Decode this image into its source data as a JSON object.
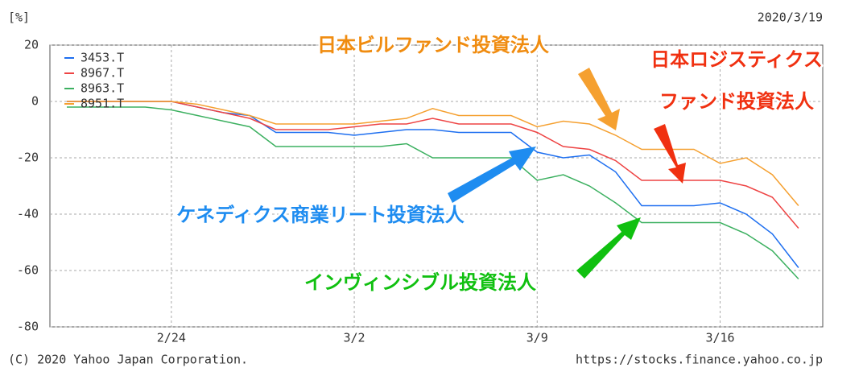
{
  "chart_data": {
    "type": "line",
    "y_unit": "[%]",
    "date": "2020/3/19",
    "categories": [
      null,
      null,
      null,
      null,
      "2/24",
      null,
      null,
      null,
      null,
      null,
      null,
      "3/2",
      null,
      null,
      null,
      null,
      null,
      null,
      "3/9",
      null,
      null,
      null,
      null,
      null,
      null,
      "3/16",
      null,
      null,
      null
    ],
    "series": [
      {
        "name": "3453.T",
        "color": "#1e6ff0",
        "values": [
          0,
          0,
          0,
          0,
          0,
          -2,
          -4,
          -5,
          -11,
          -11,
          -11,
          -12,
          -11,
          -10,
          -10,
          -11,
          -11,
          -11,
          -18,
          -20,
          -19,
          -25,
          -37,
          -37,
          -37,
          -36,
          -40,
          -47,
          -59
        ]
      },
      {
        "name": "8967.T",
        "color": "#ee4444",
        "values": [
          0,
          0,
          0,
          0,
          0,
          -2,
          -4,
          -6,
          -10,
          -10,
          -10,
          -9,
          -8,
          -8,
          -6,
          -8,
          -8,
          -8,
          -11,
          -16,
          -17,
          -21,
          -28,
          -28,
          -28,
          -28,
          -30,
          -34,
          -45
        ]
      },
      {
        "name": "8963.T",
        "color": "#3cb060",
        "values": [
          -2,
          -2,
          -2,
          -2,
          -3,
          -5,
          -7,
          -9,
          -16,
          -16,
          -16,
          -16,
          -16,
          -15,
          -20,
          -20,
          -20,
          -20,
          -28,
          -26,
          -30,
          -36,
          -43,
          -43,
          -43,
          -43,
          -47,
          -53,
          -63
        ]
      },
      {
        "name": "8951.T",
        "color": "#f5a030",
        "values": [
          0,
          0,
          0,
          0,
          0,
          -1,
          -3,
          -5,
          -8,
          -8,
          -8,
          -8,
          -7,
          -6,
          -2.5,
          -5,
          -5,
          -5,
          -9,
          -7,
          -8,
          -12,
          -17,
          -17,
          -17,
          -22,
          -20,
          -26,
          -37
        ]
      }
    ],
    "ylim": [
      -80,
      20
    ],
    "yticks": [
      20,
      0,
      -20,
      -40,
      -60,
      -80
    ],
    "grid": true,
    "annotations": [
      {
        "lines": [
          "日本ビルファンド投資法人"
        ],
        "color": "#f08c10"
      },
      {
        "lines": [
          "日本ロジスティクス",
          "ファンド投資法人"
        ],
        "color": "#f03010"
      },
      {
        "lines": [
          "ケネディクス商業リート投資法人"
        ],
        "color": "#1e8cf0"
      },
      {
        "lines": [
          "インヴィンシブル投資法人"
        ],
        "color": "#10c010"
      }
    ],
    "copyright": "(C) 2020 Yahoo Japan Corporation.",
    "source": "https://stocks.finance.yahoo.co.jp"
  }
}
